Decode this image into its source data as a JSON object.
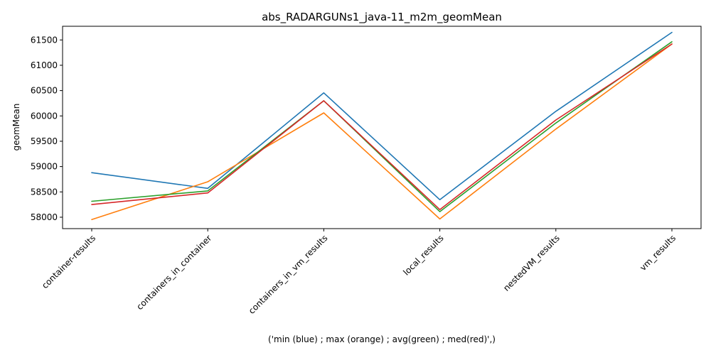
{
  "chart_data": {
    "type": "line",
    "title": "abs_RADARGUNs1_java-11_m2m_geomMean",
    "xlabel": "('min (blue) ; max (orange) ; avg(green) ; med(red)',)",
    "ylabel": "geomMean",
    "categories": [
      "container-results",
      "containers_in_container",
      "containers_in_vm_results",
      "local_results",
      "nestedVM_results",
      "vm_results"
    ],
    "ylim": [
      57775,
      61770
    ],
    "yticks": [
      58000,
      58500,
      59000,
      59500,
      60000,
      60500,
      61000,
      61500
    ],
    "grid": false,
    "series": [
      {
        "color": "#1f77b4",
        "values": [
          58880,
          58570,
          60455,
          58345,
          60090,
          61650
        ]
      },
      {
        "color": "#ff7f0e",
        "values": [
          57955,
          58700,
          60060,
          57965,
          59740,
          61420
        ]
      },
      {
        "color": "#2ca02c",
        "values": [
          58315,
          58520,
          60300,
          58110,
          59860,
          61465
        ]
      },
      {
        "color": "#d62728",
        "values": [
          58250,
          58480,
          60300,
          58150,
          59920,
          61420
        ]
      }
    ]
  }
}
